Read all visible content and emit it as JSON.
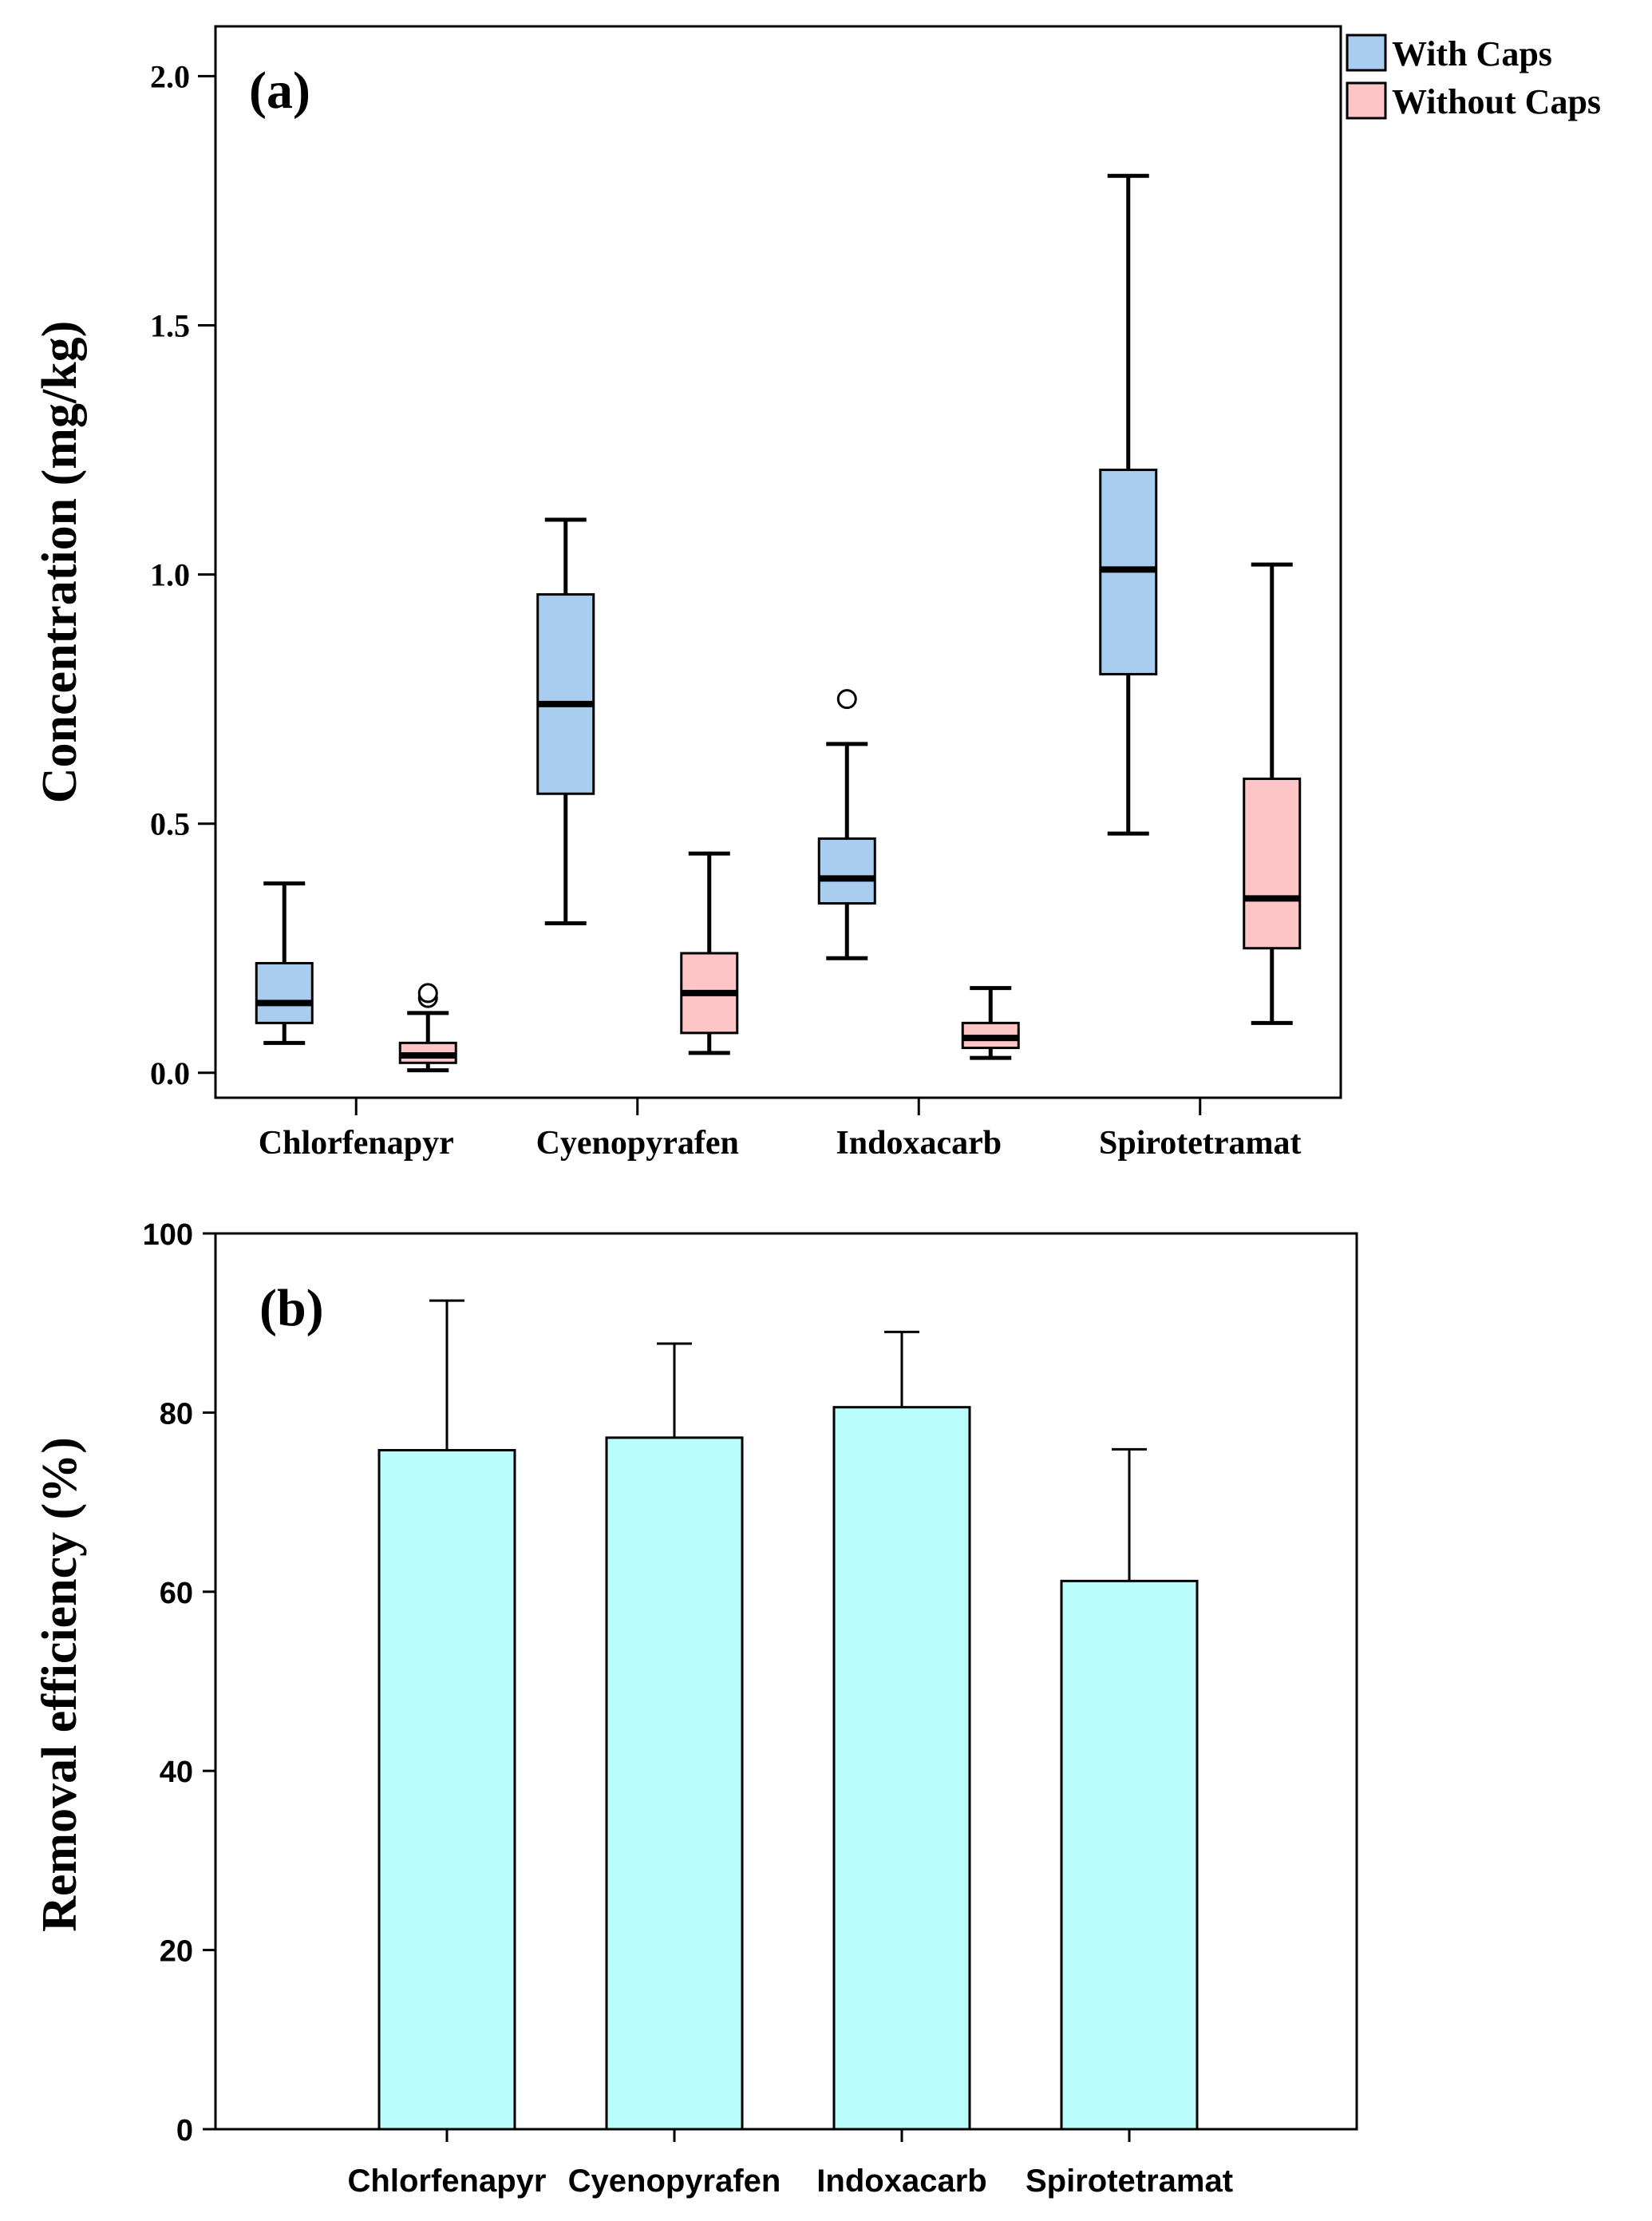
{
  "chart_data": [
    {
      "type": "box",
      "panel_label": "(a)",
      "ylabel": "Concentration (mg/kg)",
      "ylim": [
        -0.05,
        2.1
      ],
      "yticks": [
        0.0,
        0.5,
        1.0,
        1.5,
        2.0
      ],
      "ytick_labels": [
        "0.0",
        "0.5",
        "1.0",
        "1.5",
        "2.0"
      ],
      "categories": [
        "Chlorfenapyr",
        "Cyenopyrafen",
        "Indoxacarb",
        "Spirotetramat"
      ],
      "legend_position": "top-right",
      "grid": false,
      "series": [
        {
          "name": "With Caps",
          "color": "#a9cdee",
          "boxes": [
            {
              "min": 0.06,
              "q1": 0.1,
              "median": 0.14,
              "q3": 0.22,
              "max": 0.38,
              "outliers": []
            },
            {
              "min": 0.3,
              "q1": 0.56,
              "median": 0.74,
              "q3": 0.96,
              "max": 1.11,
              "outliers": []
            },
            {
              "min": 0.23,
              "q1": 0.34,
              "median": 0.39,
              "q3": 0.47,
              "max": 0.66,
              "outliers": [
                0.75
              ]
            },
            {
              "min": 0.48,
              "q1": 0.8,
              "median": 1.01,
              "q3": 1.21,
              "max": 1.8,
              "outliers": []
            }
          ]
        },
        {
          "name": "Without Caps",
          "color": "#fdc5c5",
          "boxes": [
            {
              "min": 0.005,
              "q1": 0.02,
              "median": 0.035,
              "q3": 0.06,
              "max": 0.12,
              "outliers": [
                0.15,
                0.16
              ]
            },
            {
              "min": 0.04,
              "q1": 0.08,
              "median": 0.16,
              "q3": 0.24,
              "max": 0.44,
              "outliers": []
            },
            {
              "min": 0.03,
              "q1": 0.05,
              "median": 0.07,
              "q3": 0.1,
              "max": 0.17,
              "outliers": []
            },
            {
              "min": 0.1,
              "q1": 0.25,
              "median": 0.35,
              "q3": 0.59,
              "max": 1.02,
              "outliers": []
            }
          ]
        }
      ]
    },
    {
      "type": "bar",
      "panel_label": "(b)",
      "ylabel": "Removal efficiency (%)",
      "ylim": [
        0,
        100
      ],
      "yticks": [
        0,
        20,
        40,
        60,
        80,
        100
      ],
      "ytick_labels": [
        "0",
        "20",
        "40",
        "60",
        "80",
        "100"
      ],
      "categories": [
        "Chlorfenapyr",
        "Cyenopyrafen",
        "Indoxacarb",
        "Spirotetramat"
      ],
      "values": [
        75.8,
        77.2,
        80.6,
        61.2
      ],
      "errors": [
        16.7,
        10.5,
        8.4,
        14.7
      ],
      "bar_color": "#bbfcfc",
      "grid": false
    }
  ]
}
